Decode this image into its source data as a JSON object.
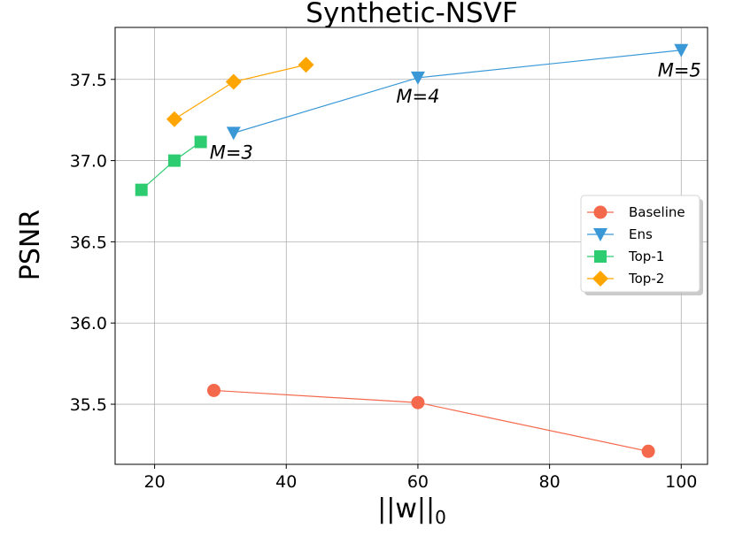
{
  "chart_data": {
    "type": "line",
    "title": "Synthetic-NSVF",
    "xlabel": "||w||",
    "xlabel_subscript": "0",
    "ylabel": "PSNR",
    "xlim": [
      14,
      104
    ],
    "ylim": [
      35.13,
      37.82
    ],
    "grid": true,
    "legend_position": "center-right",
    "x_ticks": [
      20,
      40,
      60,
      80,
      100
    ],
    "x_tick_labels": [
      "20",
      "40",
      "60",
      "80",
      "100"
    ],
    "y_ticks": [
      35.5,
      36.0,
      36.5,
      37.0,
      37.5
    ],
    "y_tick_labels": [
      "35.5",
      "36.0",
      "36.5",
      "37.0",
      "37.5"
    ],
    "series": [
      {
        "name": "Baseline",
        "color": "#f4694c",
        "marker": "circle",
        "points": [
          [
            29,
            35.585
          ],
          [
            60,
            35.51
          ],
          [
            95,
            35.21
          ]
        ]
      },
      {
        "name": "Ens",
        "color": "#3a98d6",
        "marker": "triangle-down",
        "points": [
          [
            32,
            37.17
          ],
          [
            60,
            37.51
          ],
          [
            100,
            37.68
          ]
        ]
      },
      {
        "name": "Top-1",
        "color": "#2ecc71",
        "marker": "square",
        "points": [
          [
            18,
            36.82
          ],
          [
            23,
            37.0
          ],
          [
            27,
            37.115
          ]
        ]
      },
      {
        "name": "Top-2",
        "color": "#ffa500",
        "marker": "diamond",
        "points": [
          [
            23,
            37.255
          ],
          [
            32,
            37.485
          ],
          [
            43,
            37.59
          ]
        ]
      }
    ],
    "annotations": [
      {
        "text": "M=3",
        "x": 32,
        "y": 37.17,
        "anchor": "start",
        "dx": -27,
        "dy": 29
      },
      {
        "text": "M=4",
        "x": 60,
        "y": 37.51,
        "anchor": "middle",
        "dx": 0,
        "dy": 28
      },
      {
        "text": "M=5",
        "x": 100,
        "y": 37.68,
        "anchor": "middle",
        "dx": -2,
        "dy": 30
      }
    ]
  }
}
